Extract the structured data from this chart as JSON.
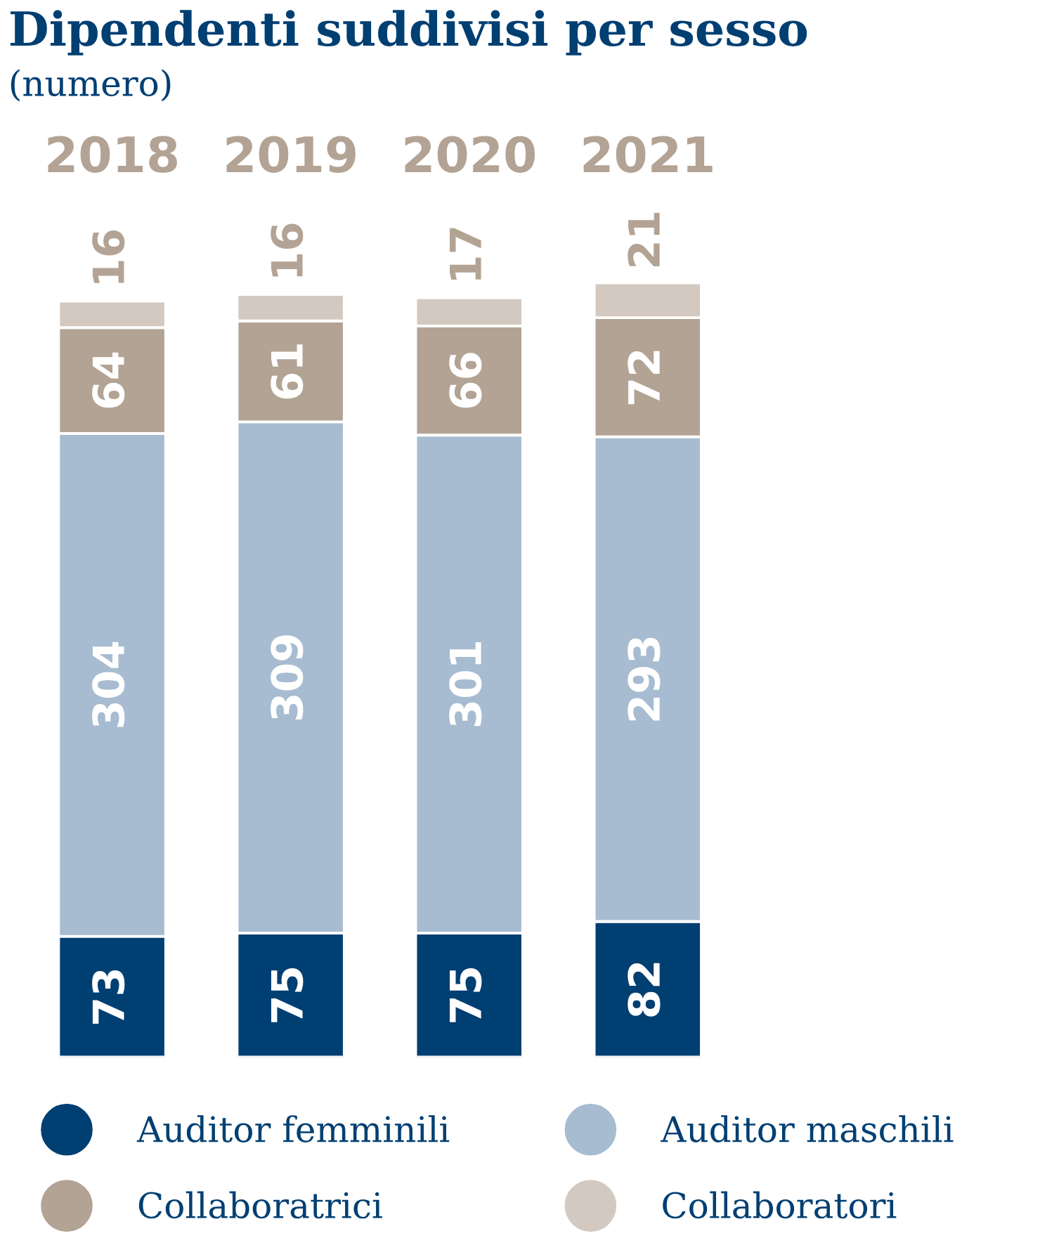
{
  "chart_data": {
    "type": "bar",
    "title": "Dipendenti suddivisi per sesso",
    "subtitle": "(numero)",
    "categories": [
      "2018",
      "2019",
      "2020",
      "2021"
    ],
    "stacked": true,
    "data_labels": true,
    "legend": "bottom",
    "grid": false,
    "series": [
      {
        "name": "Auditor femminili",
        "color": "#003f72",
        "values": [
          73,
          75,
          75,
          82
        ]
      },
      {
        "name": "Auditor maschili",
        "color": "#a7bcd1",
        "values": [
          304,
          309,
          301,
          293
        ]
      },
      {
        "name": "Collaboratrici",
        "color": "#b3a394",
        "values": [
          64,
          61,
          66,
          72
        ]
      },
      {
        "name": "Collaboratori",
        "color": "#d3c9c0",
        "values": [
          16,
          16,
          17,
          21
        ]
      }
    ]
  }
}
